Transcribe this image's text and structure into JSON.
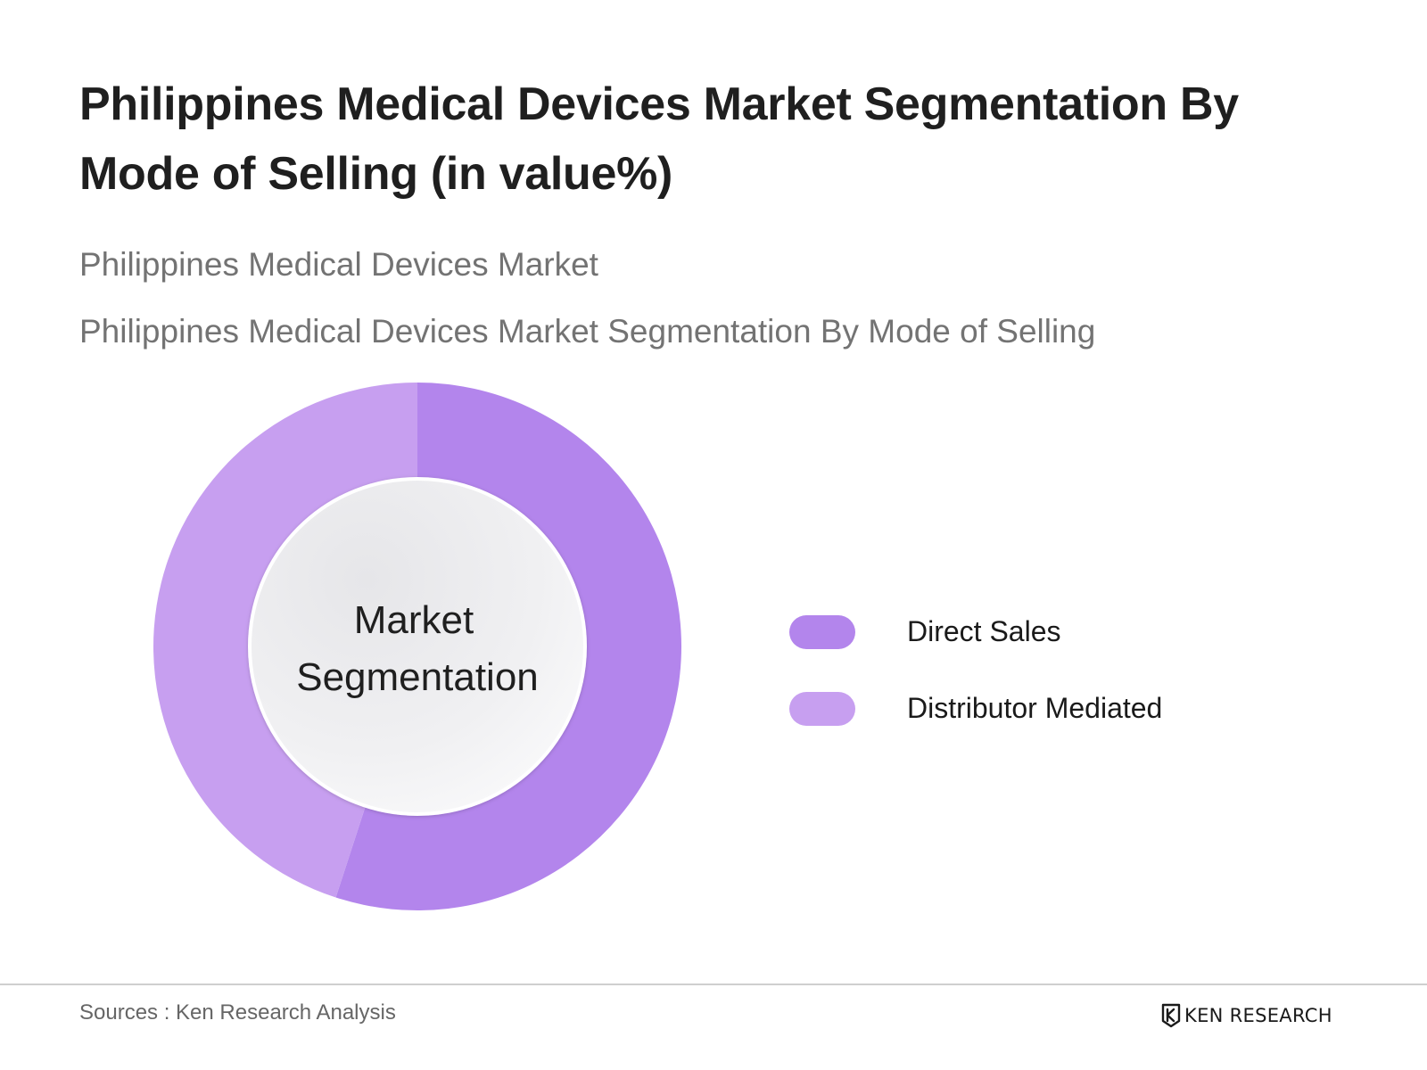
{
  "title": "Philippines Medical Devices Market Segmentation By Mode of Selling (in value%)",
  "subtitle_1": "Philippines Medical Devices Market",
  "subtitle_2": "Philippines Medical Devices Market Segmentation By Mode of Selling",
  "chart_data": {
    "type": "pie",
    "variant": "donut",
    "center_label_lines": [
      "Market",
      "Segmentation"
    ],
    "categories": [
      "Direct Sales",
      "Distributor Mediated"
    ],
    "values": [
      55,
      45
    ],
    "unit": "%",
    "colors": [
      "#b385ec",
      "#c79ff0"
    ],
    "start_angle_deg": 0,
    "direction": "clockwise",
    "legend_position": "right"
  },
  "legend": {
    "items": [
      {
        "label": "Direct Sales",
        "color": "#b385ec"
      },
      {
        "label": "Distributor Mediated",
        "color": "#c79ff0"
      }
    ]
  },
  "footer": {
    "source": "Sources : Ken Research Analysis",
    "logo_text": "KEN RESEARCH"
  }
}
